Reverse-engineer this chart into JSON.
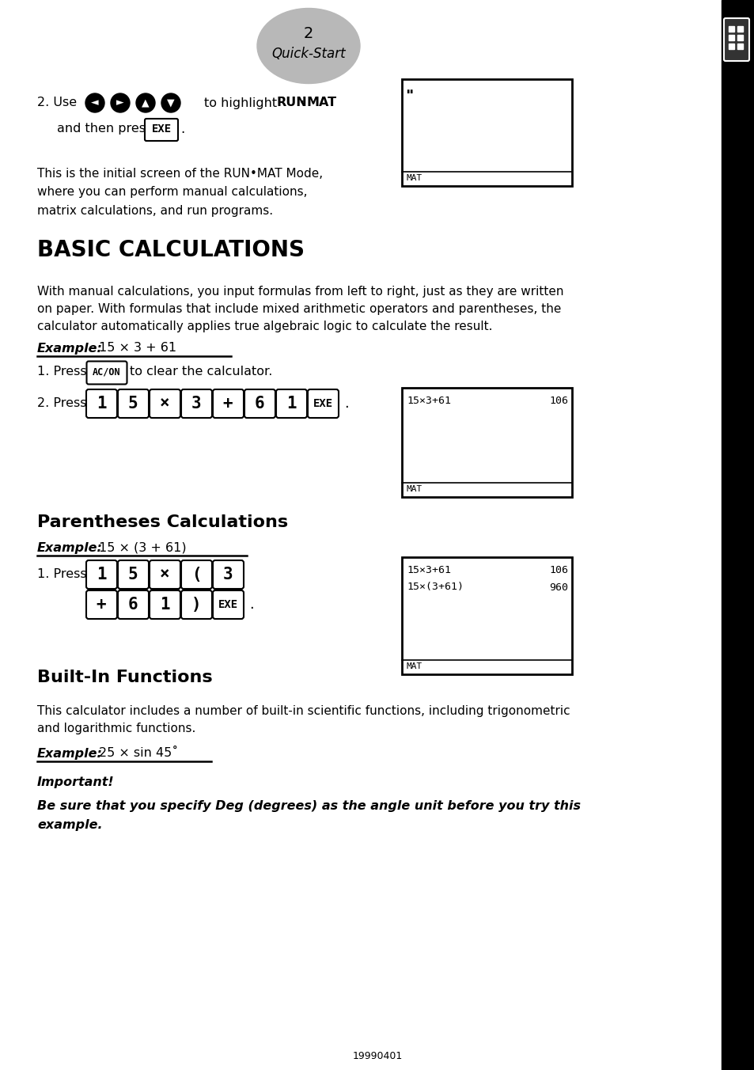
{
  "bg_color": "#ffffff",
  "page_number": "2",
  "page_subtitle": "Quick-Start",
  "section1_title": "BASIC CALCULATIONS",
  "section2_title": "Parentheses Calculations",
  "section3_title": "Built-In Functions",
  "intro_use": "2. Use",
  "intro_highlight": "to highlight ",
  "intro_run": "RUN",
  "intro_dot": "·",
  "intro_mat": "MAT",
  "intro_andthen": "and then press",
  "intro_p1": "This is the initial screen of the RUN•MAT Mode,",
  "intro_p2": "where you can perform manual calculations,",
  "intro_p3": "matrix calculations, and run programs.",
  "basic_desc1": "With manual calculations, you input formulas from left to right, just as they are written",
  "basic_desc2": "on paper. With formulas that include mixed arithmetic operators and parentheses, the",
  "basic_desc3": "calculator automatically applies true algebraic logic to calculate the result.",
  "example_label": "Example:",
  "example1_expr": "15 × 3 + 61",
  "step1_press": "1. Press",
  "step1_text": "to clear the calculator.",
  "step2_press": "2. Press",
  "example2_expr": "15 × (3 + 61)",
  "step1p_press": "1. Press",
  "section3_desc1": "This calculator includes a number of built-in scientific functions, including trigonometric",
  "section3_desc2": "and logarithmic functions.",
  "example3_expr": "25 × sin 45˚",
  "important_label": "Important!",
  "important_text1": "Be sure that you specify Deg (degrees) as the angle unit before you try this",
  "important_text2": "example.",
  "footer_text": "19990401",
  "sc1_mat": "MAT",
  "sc2_expr": "15×3+61",
  "sc2_result": "106",
  "sc2_mat": "MAT",
  "sc3_expr1": "15×3+61",
  "sc3_result1": "106",
  "sc3_expr2": "15×(3+61)",
  "sc3_result2": "960",
  "sc3_mat": "MAT"
}
